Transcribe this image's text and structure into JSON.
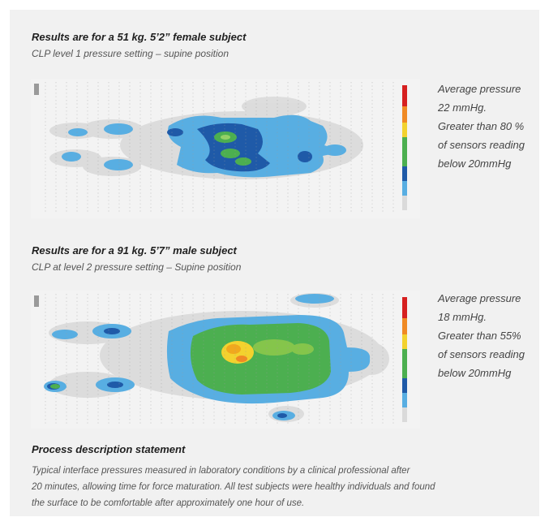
{
  "section1": {
    "title": "Results are for a 51 kg. 5’2” female subject",
    "subtitle": "CLP level 1 pressure setting – supine position",
    "note_lines": [
      "Average pressure",
      "22 mmHg.",
      "Greater than 80 %",
      "of sensors reading",
      "below 20mmHg"
    ]
  },
  "section2": {
    "title": "Results are for a 91 kg. 5’7” male subject",
    "subtitle": "CLP at level 2 pressure setting – Supine position",
    "note_lines": [
      "Average pressure",
      "18 mmHg.",
      "Greater than 55%",
      "of sensors reading",
      "below 20mmHg"
    ]
  },
  "process": {
    "title": "Process description statement",
    "lines": [
      "Typical interface pressures measured in laboratory conditions by a clinical professional after",
      "20 minutes, allowing time for force maturation. All test subjects were healthy individuals and found",
      "the surface to be comfortable after approximately one hour of use."
    ]
  },
  "colors": {
    "panel_bg": "#f1f1f1",
    "grey_zone": "#dcdcdc",
    "light_blue": "#4da6df",
    "dark_blue": "#1e57a8",
    "green": "#4caf50",
    "yellow": "#f3d22e",
    "orange": "#f08a24",
    "red": "#d62020"
  }
}
